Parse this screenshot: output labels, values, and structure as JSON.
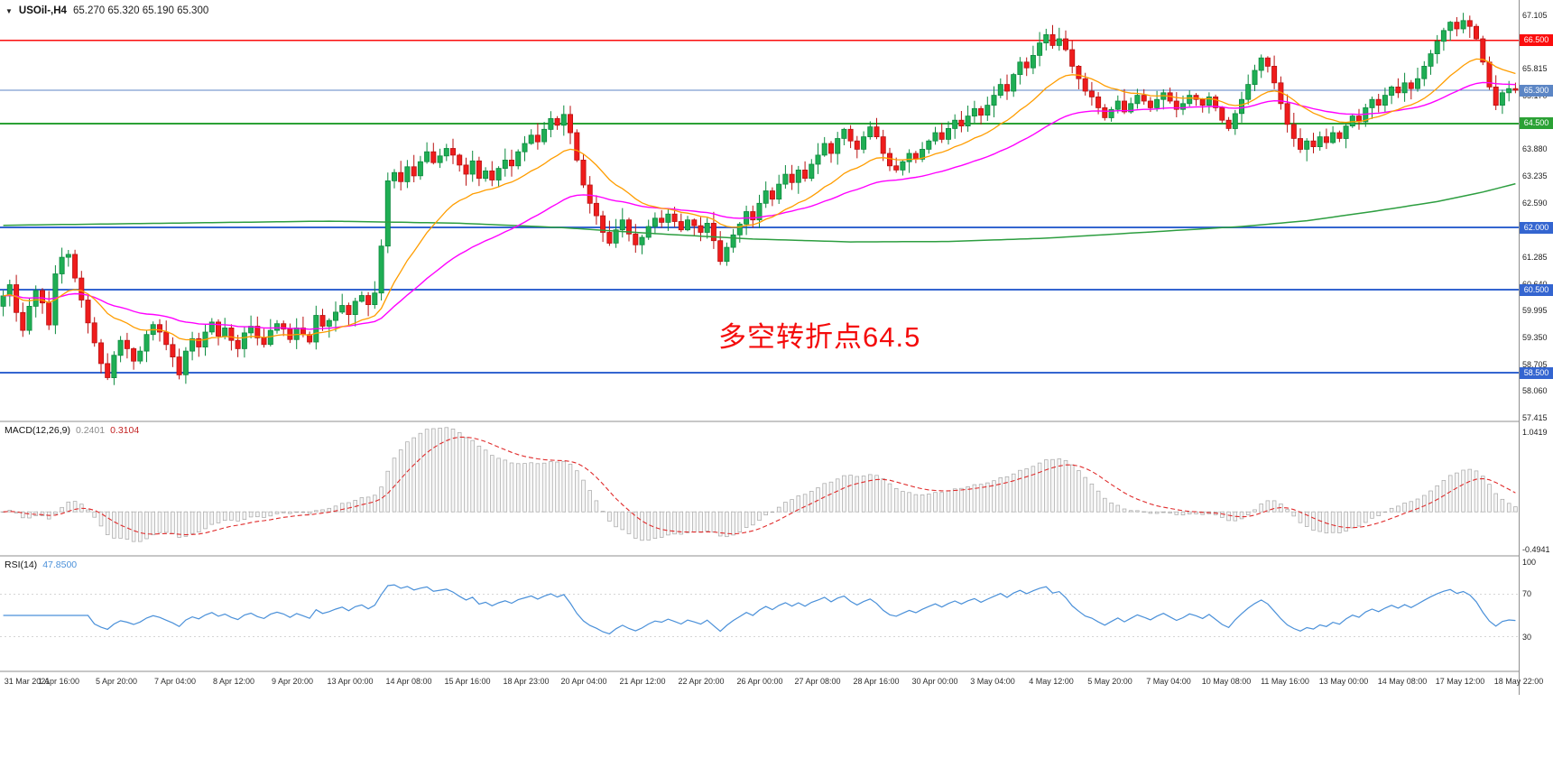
{
  "header": {
    "symbol_period": "USOil-,H4",
    "ohlc": "65.270 65.320 65.190 65.300"
  },
  "colors": {
    "bull": "#1fae54",
    "bull_border": "#0c8a3e",
    "bear": "#ef1c1c",
    "bear_border": "#b91212",
    "background": "#ffffff",
    "rsi_line": "#4a90d9",
    "macd_signal": "#e02b2b",
    "macd_bar_stroke": "#a6a6a6"
  },
  "indicators": {
    "macd": {
      "label": "MACD(12,26,9)",
      "values": [
        "0.2401",
        "0.3104"
      ],
      "axis_labels": [
        "1.0419",
        "-0.4941"
      ],
      "axis_values": [
        1.0419,
        -0.4941
      ]
    },
    "rsi": {
      "label": "RSI(14)",
      "value": "47.8500",
      "axis_labels": [
        "100",
        "70",
        "30"
      ],
      "axis_level_values": [
        100,
        70,
        30
      ],
      "levels_dashed": [
        70,
        30
      ]
    }
  },
  "chart_data": {
    "type": "candlestick",
    "symbol": "USOil-",
    "timeframe": "H4",
    "title": "USOil-,H4",
    "ohlc_display": {
      "open": "65.270",
      "high": "65.320",
      "low": "65.190",
      "close": "65.300"
    },
    "annotation": {
      "text": "多空转折点64.5",
      "color": "#f40b0b",
      "meaning": "bull-bear turning point 64.5"
    },
    "y_axis": {
      "max": 67.105,
      "min": 57.415,
      "ticks": [
        67.105,
        65.815,
        65.17,
        63.88,
        63.235,
        62.59,
        61.285,
        60.64,
        59.995,
        59.35,
        58.705,
        58.06,
        57.415
      ]
    },
    "x_labels": [
      "31 Mar 2021",
      "1 Apr 16:00",
      "5 Apr 20:00",
      "7 Apr 04:00",
      "8 Apr 12:00",
      "9 Apr 20:00",
      "13 Apr 00:00",
      "14 Apr 08:00",
      "15 Apr 16:00",
      "18 Apr 23:00",
      "20 Apr 04:00",
      "21 Apr 12:00",
      "22 Apr 20:00",
      "26 Apr 00:00",
      "27 Apr 08:00",
      "28 Apr 16:00",
      "30 Apr 00:00",
      "3 May 04:00",
      "4 May 12:00",
      "5 May 20:00",
      "7 May 04:00",
      "10 May 08:00",
      "11 May 16:00",
      "13 May 00:00",
      "14 May 08:00",
      "17 May 12:00",
      "18 May 22:00"
    ],
    "horizontal_lines": [
      {
        "value": 66.5,
        "label": "66.500",
        "color": "#fb0d0d",
        "line_width": 1.4
      },
      {
        "value": 65.3,
        "label": "65.300",
        "color": "#5c86c5",
        "line_width": 1.0
      },
      {
        "value": 64.5,
        "label": "64.500",
        "color": "#2ba135",
        "line_width": 1.8
      },
      {
        "value": 62.0,
        "label": "62.000",
        "color": "#3465d0",
        "line_width": 1.8
      },
      {
        "value": 60.5,
        "label": "60.500",
        "color": "#3465d0",
        "line_width": 1.8
      },
      {
        "value": 58.5,
        "label": "58.500",
        "color": "#3465d0",
        "line_width": 1.8
      }
    ],
    "moving_averages": [
      {
        "name": "fast-ma",
        "type": "ema",
        "period": 18,
        "color": "#ff9d00"
      },
      {
        "name": "medium-ma",
        "type": "ema",
        "period": 45,
        "color": "#ff00ff"
      },
      {
        "name": "slow-ma",
        "type": "waypoints",
        "color": "#2d9e40",
        "waypoints": [
          [
            0,
            62.05
          ],
          [
            25,
            62.1
          ],
          [
            50,
            62.15
          ],
          [
            70,
            62.1
          ],
          [
            85,
            62.0
          ],
          [
            100,
            61.85
          ],
          [
            115,
            61.72
          ],
          [
            130,
            61.65
          ],
          [
            145,
            61.66
          ],
          [
            160,
            61.74
          ],
          [
            175,
            61.88
          ],
          [
            190,
            62.02
          ],
          [
            200,
            62.16
          ],
          [
            210,
            62.38
          ],
          [
            220,
            62.62
          ],
          [
            227,
            62.85
          ],
          [
            232,
            63.05
          ]
        ]
      }
    ],
    "candles": {
      "first_open": 60.1,
      "close": [
        60.35,
        60.62,
        59.95,
        59.52,
        60.1,
        60.48,
        60.18,
        59.65,
        60.88,
        61.28,
        61.35,
        60.78,
        60.25,
        59.7,
        59.22,
        58.72,
        58.38,
        58.92,
        59.28,
        59.08,
        58.78,
        59.02,
        59.42,
        59.66,
        59.48,
        59.18,
        58.88,
        58.45,
        59.02,
        59.32,
        59.12,
        59.48,
        59.72,
        59.38,
        59.58,
        59.28,
        59.08,
        59.46,
        59.62,
        59.34,
        59.18,
        59.52,
        59.68,
        59.55,
        59.3,
        59.58,
        59.42,
        59.24,
        59.88,
        59.62,
        59.76,
        59.96,
        60.12,
        59.9,
        60.22,
        60.36,
        60.14,
        60.42,
        61.55,
        63.12,
        63.32,
        63.1,
        63.46,
        63.24,
        63.58,
        63.82,
        63.56,
        63.72,
        63.9,
        63.74,
        63.5,
        63.28,
        63.6,
        63.18,
        63.36,
        63.14,
        63.42,
        63.62,
        63.48,
        63.82,
        64.02,
        64.22,
        64.06,
        64.36,
        64.62,
        64.46,
        64.72,
        64.28,
        63.62,
        63.02,
        62.58,
        62.28,
        61.88,
        61.62,
        61.94,
        62.18,
        61.84,
        61.58,
        61.76,
        62.02,
        62.22,
        62.12,
        62.32,
        62.14,
        61.94,
        62.18,
        62.04,
        61.88,
        62.1,
        61.68,
        61.18,
        61.52,
        61.82,
        62.08,
        62.38,
        62.18,
        62.58,
        62.88,
        62.68,
        63.04,
        63.28,
        63.08,
        63.38,
        63.18,
        63.52,
        63.74,
        64.02,
        63.78,
        64.14,
        64.36,
        64.08,
        63.88,
        64.18,
        64.42,
        64.18,
        63.78,
        63.48,
        63.38,
        63.58,
        63.78,
        63.64,
        63.88,
        64.08,
        64.28,
        64.12,
        64.38,
        64.58,
        64.44,
        64.68,
        64.86,
        64.7,
        64.94,
        65.18,
        65.44,
        65.28,
        65.68,
        65.98,
        65.84,
        66.14,
        66.44,
        66.64,
        66.38,
        66.54,
        66.28,
        65.88,
        65.58,
        65.28,
        65.14,
        64.88,
        64.64,
        64.84,
        65.04,
        64.78,
        64.98,
        65.18,
        65.04,
        64.88,
        65.08,
        65.24,
        65.04,
        64.84,
        64.98,
        65.18,
        65.08,
        64.94,
        65.14,
        64.88,
        64.58,
        64.38,
        64.74,
        65.08,
        65.44,
        65.78,
        66.08,
        65.88,
        65.48,
        64.98,
        64.48,
        64.14,
        63.88,
        64.08,
        63.94,
        64.18,
        64.04,
        64.28,
        64.14,
        64.44,
        64.68,
        64.54,
        64.88,
        65.08,
        64.94,
        65.18,
        65.38,
        65.24,
        65.48,
        65.34,
        65.58,
        65.88,
        66.18,
        66.48,
        66.74,
        66.94,
        66.78,
        66.98,
        66.84,
        66.54,
        65.98,
        65.38,
        64.94,
        65.24,
        65.34,
        65.3
      ]
    }
  }
}
